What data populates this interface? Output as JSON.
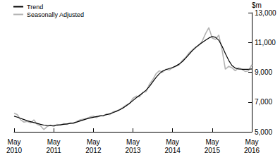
{
  "chart_data": {
    "type": "line",
    "categories": [
      "May 2010",
      null,
      null,
      null,
      null,
      null,
      null,
      null,
      null,
      null,
      null,
      null,
      "May 2011",
      null,
      null,
      null,
      null,
      null,
      null,
      null,
      null,
      null,
      null,
      null,
      "May 2012",
      null,
      null,
      null,
      null,
      null,
      null,
      null,
      null,
      null,
      null,
      null,
      "May 2013",
      null,
      null,
      null,
      null,
      null,
      null,
      null,
      null,
      null,
      null,
      null,
      "May 2014",
      null,
      null,
      null,
      null,
      null,
      null,
      null,
      null,
      null,
      null,
      null,
      "May 2015",
      null,
      null,
      null,
      null,
      null,
      null,
      null,
      null,
      null,
      null,
      null,
      "May 2016"
    ],
    "series": [
      {
        "name": "Trend",
        "color": "#000000",
        "values": [
          6050,
          5980,
          5900,
          5820,
          5740,
          5680,
          5620,
          5560,
          5500,
          5450,
          5420,
          5410,
          5420,
          5440,
          5470,
          5500,
          5530,
          5560,
          5600,
          5660,
          5730,
          5800,
          5870,
          5930,
          5980,
          6020,
          6060,
          6100,
          6150,
          6210,
          6290,
          6380,
          6480,
          6600,
          6750,
          6920,
          7100,
          7280,
          7450,
          7620,
          7800,
          8050,
          8350,
          8650,
          8900,
          9080,
          9180,
          9250,
          9320,
          9420,
          9550,
          9720,
          9950,
          10200,
          10450,
          10650,
          10850,
          11000,
          11150,
          11300,
          11400,
          11350,
          11150,
          10750,
          10250,
          9800,
          9450,
          9280,
          9220,
          9200,
          9200,
          9200,
          9220
        ]
      },
      {
        "name": "Seasonally Adjusted",
        "color": "#b3b3b3",
        "values": [
          6250,
          6150,
          5800,
          5650,
          5700,
          5600,
          5800,
          5500,
          5400,
          5150,
          5350,
          5450,
          5350,
          5500,
          5450,
          5550,
          5500,
          5600,
          5550,
          5700,
          5800,
          5850,
          5900,
          6000,
          6050,
          5950,
          6100,
          6050,
          6200,
          6150,
          6350,
          6400,
          6500,
          6650,
          6800,
          6900,
          7250,
          7400,
          7350,
          7650,
          7700,
          8200,
          8500,
          8900,
          9100,
          9000,
          9200,
          9150,
          9300,
          9400,
          9500,
          9800,
          10000,
          10300,
          10500,
          10700,
          10800,
          11100,
          11600,
          12000,
          11300,
          11200,
          11500,
          10500,
          9200,
          9400,
          9300,
          9100,
          9300,
          9200,
          9050,
          9100,
          9500
        ]
      }
    ],
    "y_label": "$m",
    "ylim": [
      5000,
      13000
    ],
    "yticks": [
      5000,
      7000,
      9000,
      11000,
      13000
    ],
    "grid": false,
    "legend": "top-left"
  }
}
